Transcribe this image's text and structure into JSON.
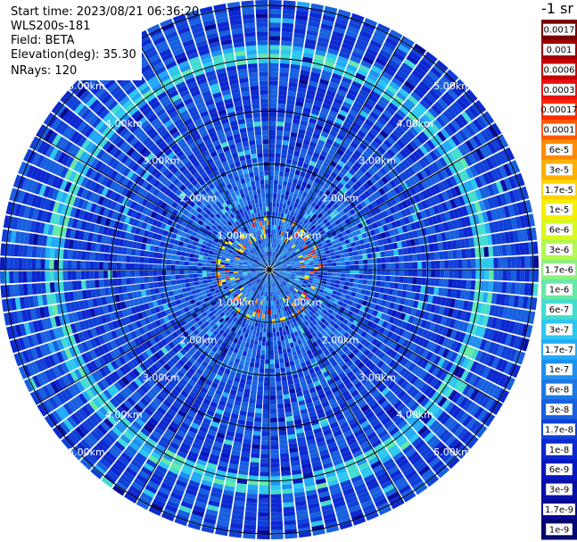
{
  "info": {
    "start_time": "Start time: 2023/08/21 06:36:20",
    "device": "WLS200s-181",
    "field": "Field: BETA",
    "elevation": "Elevation(deg): 35.30",
    "nrays": "NRays: 120"
  },
  "colorbar": {
    "unit_label": "-1 sr",
    "ticks": [
      "0.0017",
      "0.001",
      "0.0006",
      "0.0003",
      "0.00017",
      "0.0001",
      "6e-5",
      "3e-5",
      "1.7e-5",
      "1e-5",
      "6e-6",
      "3e-6",
      "1.7e-6",
      "1e-6",
      "6e-7",
      "3e-7",
      "1.7e-7",
      "1e-7",
      "6e-8",
      "3e-8",
      "1.7e-8",
      "1e-8",
      "6e-9",
      "3e-9",
      "1.7e-9",
      "1e-9"
    ],
    "colors": [
      "#7a0000",
      "#a00000",
      "#c80000",
      "#e81010",
      "#ff2a00",
      "#ff5a00",
      "#ff8c00",
      "#ffb000",
      "#ffd400",
      "#f4f000",
      "#d8f820",
      "#b4f850",
      "#8cf080",
      "#66e8a8",
      "#44dcd0",
      "#2cc8f0",
      "#22aaf8",
      "#1e90f0",
      "#1e78e8",
      "#1860e0",
      "#1040d8",
      "#0c28d0",
      "#0818c0",
      "#0810a8",
      "#060a90",
      "#040670"
    ]
  },
  "chart_data": {
    "type": "heatmap",
    "projection": "polar",
    "field": "BETA",
    "elevation_deg": 35.3,
    "n_rays": 120,
    "range_rings_km": [
      1,
      2,
      3,
      4,
      5
    ],
    "ring_labels": [
      "1.00km",
      "2.00km",
      "3.00km",
      "4.00km",
      "5.00km"
    ],
    "color_scale": "log",
    "value_range": [
      1e-09,
      0.0017
    ],
    "grid": true
  }
}
